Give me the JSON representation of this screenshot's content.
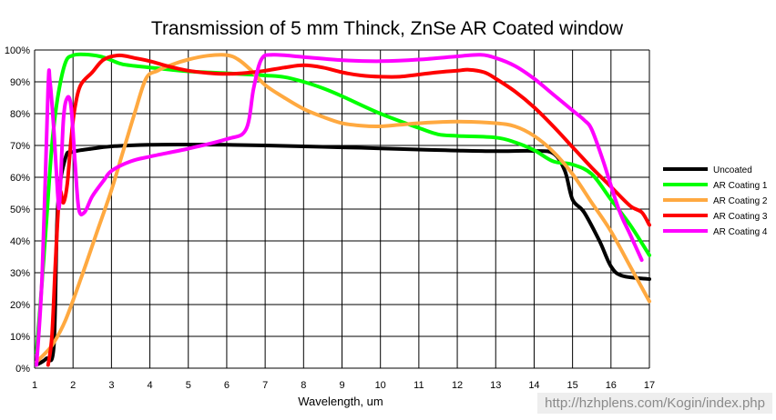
{
  "chart_data": {
    "type": "line",
    "title": "Transmission of 5 mm Thinck, ZnSe AR Coated window",
    "xlabel": "Wavelength, um",
    "ylabel": "",
    "xlim": [
      1,
      17
    ],
    "ylim": [
      0,
      100
    ],
    "x_ticks": [
      1,
      2,
      3,
      4,
      5,
      6,
      7,
      8,
      9,
      10,
      11,
      12,
      13,
      14,
      15,
      16,
      17
    ],
    "y_ticks": [
      {
        "value": 0,
        "label": "0%"
      },
      {
        "value": 10,
        "label": "10%"
      },
      {
        "value": 20,
        "label": "20%"
      },
      {
        "value": 30,
        "label": "30%"
      },
      {
        "value": 40,
        "label": "40%"
      },
      {
        "value": 50,
        "label": "50%"
      },
      {
        "value": 60,
        "label": "60%"
      },
      {
        "value": 70,
        "label": "70%"
      },
      {
        "value": 80,
        "label": "80%"
      },
      {
        "value": 90,
        "label": "90%"
      },
      {
        "value": 100,
        "label": "100%"
      }
    ],
    "grid": true,
    "legend_position": "right",
    "series": [
      {
        "name": "Uncoated",
        "color": "#000000",
        "points": [
          [
            1.05,
            1
          ],
          [
            1.3,
            3
          ],
          [
            1.5,
            7
          ],
          [
            1.6,
            50
          ],
          [
            1.8,
            66
          ],
          [
            2,
            68
          ],
          [
            2.5,
            69
          ],
          [
            3,
            69.7
          ],
          [
            4,
            70.2
          ],
          [
            5,
            70.3
          ],
          [
            6,
            70.2
          ],
          [
            7,
            70
          ],
          [
            8,
            69.7
          ],
          [
            9,
            69.4
          ],
          [
            10,
            69.1
          ],
          [
            11,
            68.7
          ],
          [
            12,
            68.4
          ],
          [
            13,
            68.2
          ],
          [
            14,
            68.3
          ],
          [
            14.5,
            67.5
          ],
          [
            14.8,
            62
          ],
          [
            15,
            53
          ],
          [
            15.3,
            49
          ],
          [
            15.7,
            40
          ],
          [
            16,
            32
          ],
          [
            16.3,
            29
          ],
          [
            17,
            28
          ]
        ]
      },
      {
        "name": "AR Coating 1",
        "color": "#00ff00",
        "points": [
          [
            1.05,
            5
          ],
          [
            1.15,
            20
          ],
          [
            1.3,
            45
          ],
          [
            1.45,
            70
          ],
          [
            1.6,
            85
          ],
          [
            1.8,
            96
          ],
          [
            2,
            98.3
          ],
          [
            2.3,
            98.6
          ],
          [
            2.7,
            98
          ],
          [
            3,
            96.8
          ],
          [
            3.3,
            95.5
          ],
          [
            4,
            94.5
          ],
          [
            5,
            93.3
          ],
          [
            6,
            92.7
          ],
          [
            7,
            92
          ],
          [
            7.5,
            91.5
          ],
          [
            8,
            90
          ],
          [
            8.5,
            88
          ],
          [
            9,
            85.5
          ],
          [
            10,
            80
          ],
          [
            11,
            75.5
          ],
          [
            11.5,
            73.5
          ],
          [
            12,
            73
          ],
          [
            13,
            72.5
          ],
          [
            13.5,
            71
          ],
          [
            14,
            68.5
          ],
          [
            14.5,
            65
          ],
          [
            15,
            64
          ],
          [
            15.5,
            61
          ],
          [
            16,
            53
          ],
          [
            16.5,
            45
          ],
          [
            17,
            35.5
          ]
        ]
      },
      {
        "name": "AR Coating 2",
        "color": "#ffa940",
        "points": [
          [
            1.05,
            2
          ],
          [
            1.3,
            5
          ],
          [
            1.5,
            8
          ],
          [
            1.8,
            15
          ],
          [
            2.2,
            28
          ],
          [
            2.6,
            42
          ],
          [
            3,
            56
          ],
          [
            3.3,
            68
          ],
          [
            3.6,
            80
          ],
          [
            3.9,
            91
          ],
          [
            4.2,
            93.5
          ],
          [
            4.6,
            95.5
          ],
          [
            5,
            97
          ],
          [
            5.5,
            98.2
          ],
          [
            6,
            98.4
          ],
          [
            6.3,
            97
          ],
          [
            6.6,
            94
          ],
          [
            7,
            89
          ],
          [
            7.5,
            85
          ],
          [
            8,
            81.5
          ],
          [
            8.5,
            79
          ],
          [
            9,
            77
          ],
          [
            9.5,
            76.2
          ],
          [
            10,
            76
          ],
          [
            10.5,
            76.5
          ],
          [
            11,
            77
          ],
          [
            12,
            77.5
          ],
          [
            13,
            77
          ],
          [
            13.5,
            76
          ],
          [
            14,
            73
          ],
          [
            14.5,
            68
          ],
          [
            15,
            61
          ],
          [
            15.5,
            52
          ],
          [
            16,
            43
          ],
          [
            16.5,
            32
          ],
          [
            17,
            21
          ]
        ]
      },
      {
        "name": "AR Coating 3",
        "color": "#ff0000",
        "points": [
          [
            1.35,
            1
          ],
          [
            1.45,
            10
          ],
          [
            1.55,
            35
          ],
          [
            1.65,
            55
          ],
          [
            1.75,
            52
          ],
          [
            1.85,
            58
          ],
          [
            1.95,
            72
          ],
          [
            2.05,
            82
          ],
          [
            2.2,
            89
          ],
          [
            2.5,
            93
          ],
          [
            2.8,
            97
          ],
          [
            3.2,
            98.3
          ],
          [
            3.6,
            97.5
          ],
          [
            4,
            96.5
          ],
          [
            4.5,
            94.8
          ],
          [
            5,
            93.5
          ],
          [
            5.5,
            92.8
          ],
          [
            6,
            92.5
          ],
          [
            6.5,
            92.8
          ],
          [
            7,
            93.5
          ],
          [
            7.5,
            94.5
          ],
          [
            8,
            95.2
          ],
          [
            8.5,
            94.5
          ],
          [
            9,
            93
          ],
          [
            9.5,
            92
          ],
          [
            10,
            91.6
          ],
          [
            10.5,
            91.6
          ],
          [
            11,
            92.3
          ],
          [
            11.5,
            93
          ],
          [
            12,
            93.5
          ],
          [
            12.3,
            93.8
          ],
          [
            12.7,
            93
          ],
          [
            13,
            91
          ],
          [
            13.5,
            87
          ],
          [
            14,
            82
          ],
          [
            14.5,
            76
          ],
          [
            15,
            69.5
          ],
          [
            15.5,
            63
          ],
          [
            16,
            57
          ],
          [
            16.5,
            51
          ],
          [
            16.8,
            49
          ],
          [
            17,
            45
          ]
        ]
      },
      {
        "name": "AR Coating 4",
        "color": "#ff00ff",
        "points": [
          [
            1.05,
            1
          ],
          [
            1.2,
            30
          ],
          [
            1.35,
            88
          ],
          [
            1.4,
            90
          ],
          [
            1.5,
            75
          ],
          [
            1.6,
            55
          ],
          [
            1.65,
            52
          ],
          [
            1.75,
            78
          ],
          [
            1.85,
            85
          ],
          [
            1.95,
            82
          ],
          [
            2.05,
            65
          ],
          [
            2.15,
            50
          ],
          [
            2.3,
            49
          ],
          [
            2.5,
            54
          ],
          [
            2.8,
            59
          ],
          [
            3,
            62
          ],
          [
            3.5,
            65
          ],
          [
            4,
            66.5
          ],
          [
            5,
            69
          ],
          [
            6,
            72
          ],
          [
            6.5,
            75
          ],
          [
            6.7,
            88
          ],
          [
            6.9,
            97
          ],
          [
            7.2,
            98.5
          ],
          [
            8,
            97.8
          ],
          [
            9,
            96.8
          ],
          [
            10,
            96.5
          ],
          [
            11,
            97
          ],
          [
            12,
            98
          ],
          [
            12.6,
            98.5
          ],
          [
            13,
            97.5
          ],
          [
            13.5,
            95
          ],
          [
            14,
            91
          ],
          [
            14.5,
            86
          ],
          [
            15,
            81
          ],
          [
            15.3,
            78
          ],
          [
            15.5,
            75
          ],
          [
            15.8,
            65
          ],
          [
            16.2,
            50
          ],
          [
            16.5,
            42
          ],
          [
            16.8,
            34
          ]
        ]
      }
    ]
  },
  "watermark": "http://hzhplens.com/Kogin/index.php"
}
